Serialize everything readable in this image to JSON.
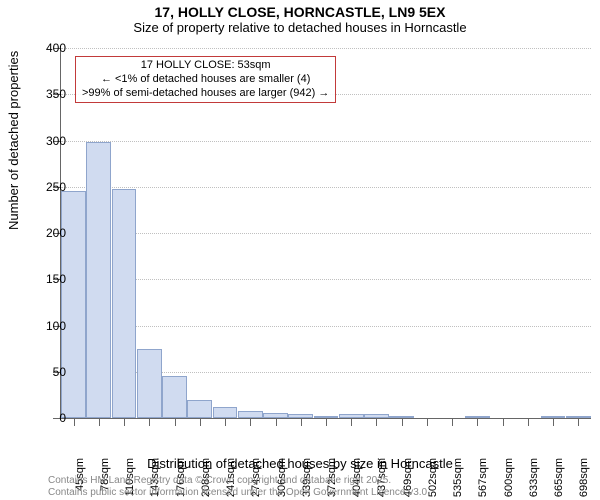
{
  "title": "17, HOLLY CLOSE, HORNCASTLE, LN9 5EX",
  "subtitle": "Size of property relative to detached houses in Horncastle",
  "chart": {
    "type": "histogram",
    "xlabel": "Distribution of detached houses by size in Horncastle",
    "ylabel": "Number of detached properties",
    "ylim": [
      0,
      400
    ],
    "ytick_step": 50,
    "yticks": [
      0,
      50,
      100,
      150,
      200,
      250,
      300,
      350,
      400
    ],
    "x_categories": [
      "45sqm",
      "78sqm",
      "110sqm",
      "143sqm",
      "176sqm",
      "208sqm",
      "241sqm",
      "274sqm",
      "306sqm",
      "339sqm",
      "372sqm",
      "404sqm",
      "437sqm",
      "469sqm",
      "502sqm",
      "535sqm",
      "567sqm",
      "600sqm",
      "633sqm",
      "665sqm",
      "698sqm"
    ],
    "values": [
      245,
      298,
      248,
      75,
      45,
      20,
      12,
      8,
      5,
      4,
      2,
      4,
      4,
      2,
      0,
      0,
      2,
      0,
      0,
      2,
      2
    ],
    "bar_fill": "#d0dbf0",
    "bar_border": "#8fa5cc",
    "grid_color": "#c0c0c0",
    "axis_color": "#666666",
    "background": "#ffffff",
    "label_fontsize": 12,
    "axis_title_fontsize": 13
  },
  "annotation": {
    "line1": "17 HOLLY CLOSE: 53sqm",
    "line2": "← <1% of detached houses are smaller (4)",
    "line3": ">99% of semi-detached houses are larger (942) →",
    "border_color": "#c23a3a"
  },
  "footer": {
    "line1": "Contains HM Land Registry data © Crown copyright and database right 2025.",
    "line2": "Contains public sector information licensed under the Open Government Licence v3.0."
  }
}
